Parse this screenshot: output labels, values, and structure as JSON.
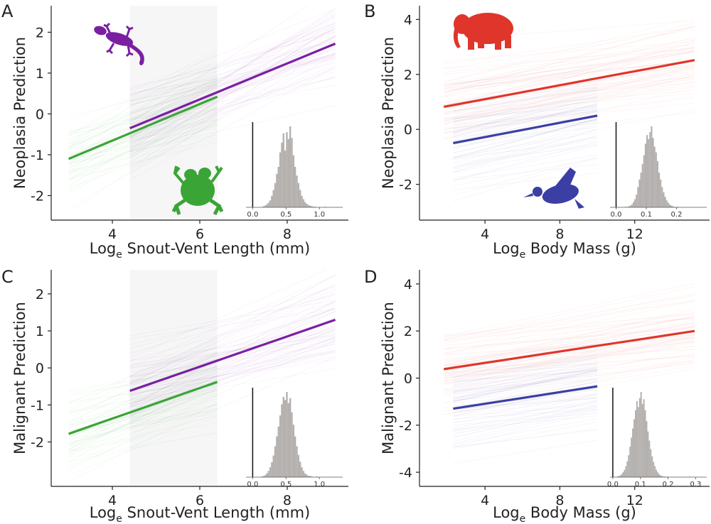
{
  "colors": {
    "lizard": "#7a1fa2",
    "frog": "#3aa536",
    "mammal": "#e0352b",
    "bird": "#3b3fa4",
    "hist": "#b3b0ae",
    "axis": "#222222"
  },
  "icons": {
    "A": [
      "gecko-silhouette",
      "frog-silhouette"
    ],
    "B": [
      "elephant-silhouette",
      "duck-silhouette"
    ]
  },
  "chart_data": [
    {
      "panel": "A",
      "type": "line",
      "xlabel_main": "Log",
      "xlabel_sub": "e",
      "xlabel_rest": " Snout-Vent Length (mm)",
      "ylabel": "Neoplasia Prediction",
      "xlim": [
        2.6,
        9.4
      ],
      "ylim": [
        -2.6,
        2.65
      ],
      "xticks": [
        4,
        6,
        8
      ],
      "yticks": [
        -2,
        -1,
        0,
        1,
        2
      ],
      "series": [
        {
          "name": "lizard",
          "x": [
            4.4,
            9.1
          ],
          "y": [
            -0.35,
            1.72
          ],
          "band": [
            4.4,
            9.1
          ],
          "spread": 0.9
        },
        {
          "name": "frog",
          "x": [
            3.0,
            6.4
          ],
          "y": [
            -1.1,
            0.42
          ],
          "band": [
            3.0,
            6.4
          ],
          "spread": 0.9
        }
      ],
      "inset": {
        "xlim": [
          -0.1,
          1.35
        ],
        "xticks": [
          0.0,
          0.5,
          1.0
        ],
        "xticklabels": [
          "0.0",
          "0.5",
          "1.0"
        ],
        "zero_line": 0.0,
        "bins_start": 0.0,
        "bin_width": 0.025,
        "counts": [
          0,
          0,
          0,
          0,
          0,
          0,
          2,
          3,
          5,
          8,
          12,
          20,
          30,
          42,
          58,
          70,
          95,
          112,
          128,
          98,
          130,
          118,
          140,
          120,
          90,
          70,
          55,
          42,
          30,
          20,
          14,
          9,
          6,
          4,
          3,
          2,
          1,
          1,
          0,
          0,
          0,
          0,
          0,
          1,
          0,
          0,
          0,
          0,
          0,
          0
        ]
      }
    },
    {
      "panel": "B",
      "type": "line",
      "xlabel_main": "Log",
      "xlabel_sub": "e",
      "xlabel_rest": " Body Mass (g)",
      "ylabel": "Neoplasia Prediction",
      "xlim": [
        0.5,
        16
      ],
      "ylim": [
        -3.3,
        4.5
      ],
      "xticks": [
        4,
        8,
        12
      ],
      "yticks": [
        -2,
        0,
        2,
        4
      ],
      "series": [
        {
          "name": "mammal",
          "x": [
            1.8,
            15.2
          ],
          "y": [
            0.82,
            2.52
          ],
          "band": [
            1.8,
            15.2
          ],
          "spread": 1.4
        },
        {
          "name": "bird",
          "x": [
            2.3,
            10.0
          ],
          "y": [
            -0.5,
            0.5
          ],
          "band": [
            2.3,
            10.0
          ],
          "spread": 1.6
        }
      ],
      "inset": {
        "xlim": [
          -0.02,
          0.3
        ],
        "xticks": [
          0.0,
          0.1,
          0.2
        ],
        "xticklabels": [
          "0.0",
          "0.1",
          "0.2"
        ],
        "zero_line": 0.0,
        "bins_start": 0.03,
        "bin_width": 0.005,
        "counts": [
          1,
          0,
          2,
          3,
          5,
          9,
          14,
          22,
          35,
          48,
          60,
          75,
          90,
          110,
          125,
          118,
          130,
          140,
          120,
          105,
          95,
          80,
          60,
          48,
          35,
          26,
          18,
          12,
          8,
          5,
          3,
          2,
          1,
          0,
          1,
          0
        ]
      }
    },
    {
      "panel": "C",
      "type": "line",
      "xlabel_main": "Log",
      "xlabel_sub": "e",
      "xlabel_rest": " Snout-Vent Length (mm)",
      "ylabel": "Malignant Prediction",
      "xlim": [
        2.6,
        9.4
      ],
      "ylim": [
        -3.2,
        2.65
      ],
      "xticks": [
        4,
        6,
        8
      ],
      "yticks": [
        -2,
        -1,
        0,
        1,
        2
      ],
      "series": [
        {
          "name": "lizard",
          "x": [
            4.4,
            9.1
          ],
          "y": [
            -0.62,
            1.3
          ],
          "band": [
            4.4,
            9.1
          ],
          "spread": 1.0
        },
        {
          "name": "frog",
          "x": [
            3.0,
            6.4
          ],
          "y": [
            -1.78,
            -0.38
          ],
          "band": [
            3.0,
            6.4
          ],
          "spread": 1.0
        }
      ],
      "inset": {
        "xlim": [
          -0.1,
          1.35
        ],
        "xticks": [
          0.0,
          0.5,
          1.0
        ],
        "xticklabels": [
          "0.0",
          "0.5",
          "1.0"
        ],
        "zero_line": 0.0,
        "bins_start": 0.0,
        "bin_width": 0.025,
        "counts": [
          0,
          0,
          0,
          0,
          0,
          1,
          2,
          3,
          6,
          10,
          16,
          24,
          35,
          50,
          66,
          82,
          100,
          118,
          130,
          125,
          138,
          120,
          128,
          105,
          85,
          66,
          50,
          36,
          25,
          16,
          10,
          6,
          4,
          2,
          2,
          1,
          0,
          0,
          1,
          0,
          0,
          0,
          0,
          0,
          0,
          0,
          0,
          0,
          0,
          0
        ]
      }
    },
    {
      "panel": "D",
      "type": "line",
      "xlabel_main": "Log",
      "xlabel_sub": "e",
      "xlabel_rest": " Body Mass (g)",
      "ylabel": "Malignant Prediction",
      "xlim": [
        0.5,
        16
      ],
      "ylim": [
        -4.6,
        4.6
      ],
      "xticks": [
        4,
        8,
        12
      ],
      "yticks": [
        -4,
        -2,
        0,
        2,
        4
      ],
      "series": [
        {
          "name": "mammal",
          "x": [
            1.8,
            15.2
          ],
          "y": [
            0.38,
            2.0
          ],
          "band": [
            1.8,
            15.2
          ],
          "spread": 1.7
        },
        {
          "name": "bird",
          "x": [
            2.3,
            10.0
          ],
          "y": [
            -1.3,
            -0.35
          ],
          "band": [
            2.3,
            10.0
          ],
          "spread": 1.9
        }
      ],
      "inset": {
        "xlim": [
          -0.01,
          0.34
        ],
        "xticks": [
          0.0,
          0.1,
          0.2,
          0.3
        ],
        "xticklabels": [
          "0.0",
          "0.1",
          "0.2",
          "0.3"
        ],
        "zero_line": 0.0,
        "bins_start": 0.0,
        "bin_width": 0.005,
        "counts": [
          0,
          0,
          0,
          1,
          2,
          3,
          5,
          8,
          12,
          18,
          26,
          36,
          50,
          65,
          80,
          95,
          110,
          125,
          115,
          130,
          140,
          120,
          128,
          110,
          92,
          75,
          60,
          46,
          34,
          25,
          18,
          12,
          8,
          5,
          3,
          2,
          1,
          1,
          0,
          1,
          0,
          0,
          0,
          0,
          0,
          0,
          0,
          0,
          0,
          0,
          0,
          0,
          0,
          0,
          0,
          1,
          0,
          0,
          0,
          0
        ]
      }
    }
  ]
}
